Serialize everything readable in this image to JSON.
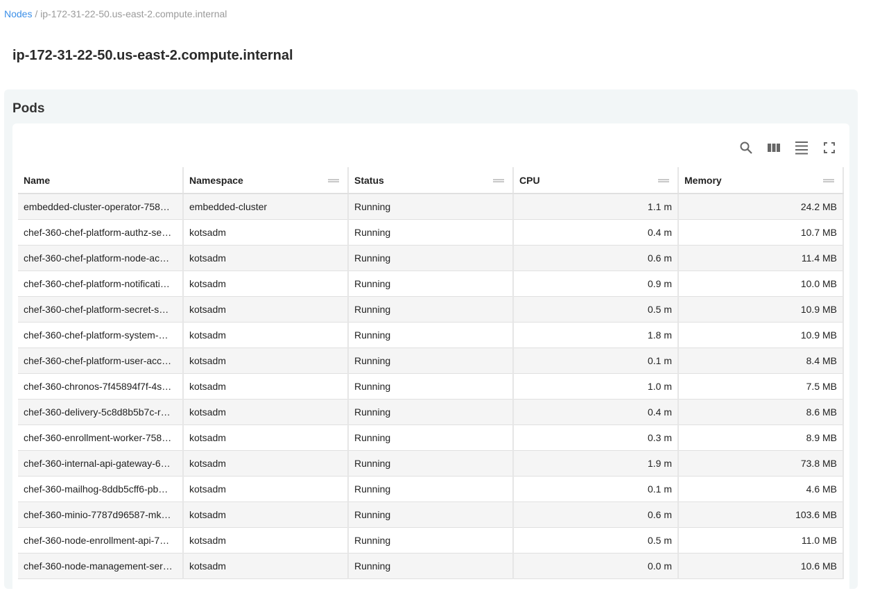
{
  "breadcrumb": {
    "root": "Nodes",
    "separator": "/",
    "current": "ip-172-31-22-50.us-east-2.compute.internal"
  },
  "title": "ip-172-31-22-50.us-east-2.compute.internal",
  "section": "Pods",
  "toolbar_icons": [
    "search-icon",
    "columns-icon",
    "density-icon",
    "fullscreen-icon"
  ],
  "columns": [
    "Name",
    "Namespace",
    "Status",
    "CPU",
    "Memory"
  ],
  "rows": [
    [
      "embedded-cluster-operator-758…",
      "embedded-cluster",
      "Running",
      "1.1 m",
      "24.2 MB"
    ],
    [
      "chef-360-chef-platform-authz-se…",
      "kotsadm",
      "Running",
      "0.4 m",
      "10.7 MB"
    ],
    [
      "chef-360-chef-platform-node-ac…",
      "kotsadm",
      "Running",
      "0.6 m",
      "11.4 MB"
    ],
    [
      "chef-360-chef-platform-notificati…",
      "kotsadm",
      "Running",
      "0.9 m",
      "10.0 MB"
    ],
    [
      "chef-360-chef-platform-secret-s…",
      "kotsadm",
      "Running",
      "0.5 m",
      "10.9 MB"
    ],
    [
      "chef-360-chef-platform-system-…",
      "kotsadm",
      "Running",
      "1.8 m",
      "10.9 MB"
    ],
    [
      "chef-360-chef-platform-user-acc…",
      "kotsadm",
      "Running",
      "0.1 m",
      "8.4 MB"
    ],
    [
      "chef-360-chronos-7f45894f7f-4s…",
      "kotsadm",
      "Running",
      "1.0 m",
      "7.5 MB"
    ],
    [
      "chef-360-delivery-5c8d8b5b7c-r…",
      "kotsadm",
      "Running",
      "0.4 m",
      "8.6 MB"
    ],
    [
      "chef-360-enrollment-worker-758…",
      "kotsadm",
      "Running",
      "0.3 m",
      "8.9 MB"
    ],
    [
      "chef-360-internal-api-gateway-6…",
      "kotsadm",
      "Running",
      "1.9 m",
      "73.8 MB"
    ],
    [
      "chef-360-mailhog-8ddb5cff6-pb…",
      "kotsadm",
      "Running",
      "0.1 m",
      "4.6 MB"
    ],
    [
      "chef-360-minio-7787d96587-mk…",
      "kotsadm",
      "Running",
      "0.6 m",
      "103.6 MB"
    ],
    [
      "chef-360-node-enrollment-api-7…",
      "kotsadm",
      "Running",
      "0.5 m",
      "11.0 MB"
    ],
    [
      "chef-360-node-management-ser…",
      "kotsadm",
      "Running",
      "0.0 m",
      "10.6 MB"
    ]
  ]
}
